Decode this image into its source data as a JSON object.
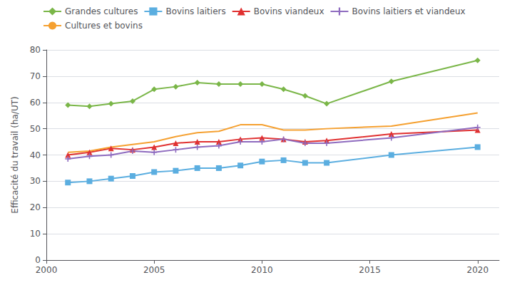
{
  "chart_data": {
    "type": "line",
    "ylabel": "Efficacité du travail (ha/UT)",
    "x": [
      2001,
      2002,
      2003,
      2004,
      2005,
      2006,
      2007,
      2008,
      2009,
      2010,
      2011,
      2012,
      2013,
      2016,
      2020
    ],
    "xlim": [
      2000,
      2021
    ],
    "xticks": [
      2000,
      2005,
      2010,
      2015,
      2020
    ],
    "ylim": [
      0,
      80
    ],
    "yticks": [
      0,
      10,
      20,
      30,
      40,
      50,
      60,
      70,
      80
    ],
    "grid": true,
    "legend": "top",
    "series": [
      {
        "name": "Grandes cultures",
        "color": "#7ab648",
        "marker": "diamond",
        "values": [
          59,
          58.5,
          59.5,
          60.5,
          65,
          66,
          67.5,
          67,
          67,
          67,
          65,
          62.5,
          59.5,
          68,
          76
        ]
      },
      {
        "name": "Bovins laitiers",
        "color": "#5baee0",
        "marker": "square",
        "values": [
          29.5,
          30,
          31,
          32,
          33.5,
          34,
          35,
          35,
          36,
          37.5,
          38,
          37,
          37,
          40,
          43
        ]
      },
      {
        "name": "Bovins viandeux",
        "color": "#e03030",
        "marker": "triangle",
        "values": [
          40,
          41,
          42.5,
          42,
          43,
          44.5,
          45,
          45,
          46,
          46.5,
          46,
          45,
          45.5,
          48,
          49.5
        ]
      },
      {
        "name": "Bovins laitiers et viandeux",
        "color": "#8e6bbf",
        "marker": "plus",
        "values": [
          38.5,
          39.5,
          40,
          41.5,
          41,
          42,
          43,
          43.5,
          45,
          45,
          46,
          44.5,
          44.5,
          46.5,
          50.5
        ]
      },
      {
        "name": "Cultures et bovins",
        "color": "#f5a030",
        "values": [
          41,
          41.5,
          43,
          44,
          45,
          47,
          48.5,
          49,
          51.5,
          51.5,
          49.5,
          49.5,
          50,
          51,
          56
        ]
      }
    ]
  }
}
